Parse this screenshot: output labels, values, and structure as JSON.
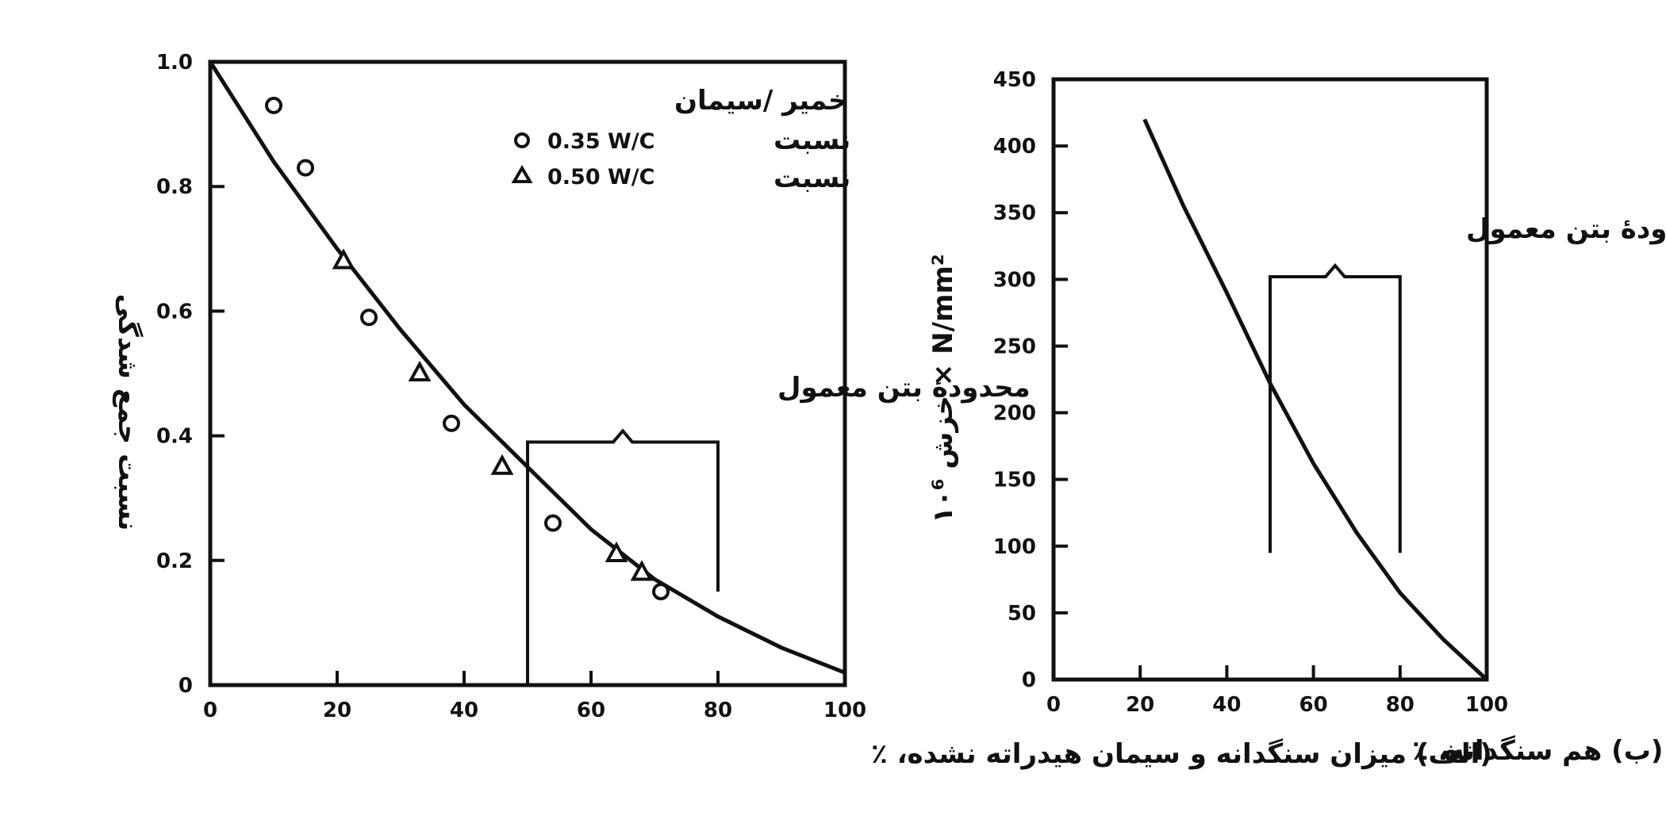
{
  "chart_data": [
    {
      "type": "scatter",
      "panel_label": "(الف)",
      "xlabel": "(الف) میزان سنگدانه و سیمان هیدراته نشده، ٪",
      "ylabel": "نسبت جمع شدگی",
      "xlim": [
        0,
        100
      ],
      "ylim": [
        0,
        1.0
      ],
      "x_ticks": [
        "0",
        "20",
        "40",
        "60",
        "80",
        "100"
      ],
      "y_ticks": [
        "0",
        "0.2",
        "0.4",
        "0.6",
        "0.8",
        "1.0"
      ],
      "legend_title": "خمیر /سیمان",
      "series": [
        {
          "name": "0.35 W/C",
          "legend_prefix": "نسبت",
          "marker": "circle",
          "points": [
            [
              10,
              0.93
            ],
            [
              15,
              0.83
            ],
            [
              25,
              0.59
            ],
            [
              38,
              0.42
            ],
            [
              54,
              0.26
            ],
            [
              71,
              0.15
            ]
          ]
        },
        {
          "name": "0.50 W/C",
          "legend_prefix": "نسبت",
          "marker": "triangle",
          "points": [
            [
              21,
              0.68
            ],
            [
              33,
              0.5
            ],
            [
              46,
              0.35
            ],
            [
              64,
              0.21
            ],
            [
              68,
              0.18
            ]
          ]
        }
      ],
      "curve": {
        "style": "solid",
        "points": [
          [
            0,
            1.0
          ],
          [
            10,
            0.84
          ],
          [
            20,
            0.7
          ],
          [
            30,
            0.57
          ],
          [
            40,
            0.45
          ],
          [
            50,
            0.35
          ],
          [
            60,
            0.25
          ],
          [
            70,
            0.17
          ],
          [
            80,
            0.11
          ],
          [
            90,
            0.06
          ],
          [
            100,
            0.02
          ]
        ]
      },
      "annotation": {
        "text": "محدودهٔ بتن معمول",
        "range_x": [
          50,
          80
        ],
        "bracket_y": 0.39,
        "bar_bottom_y": 0.15
      },
      "grid": false
    },
    {
      "type": "line",
      "panel_label": "(ب)",
      "xlabel": "(ب) هم سنگدانه، ٪",
      "ylabel": "خزش ۱۰⁶ × N/mm²",
      "xlim": [
        0,
        100
      ],
      "ylim": [
        0,
        450
      ],
      "x_ticks": [
        "0",
        "20",
        "40",
        "60",
        "80",
        "100"
      ],
      "y_ticks": [
        "0",
        "50",
        "100",
        "150",
        "200",
        "250",
        "300",
        "350",
        "400",
        "450"
      ],
      "series": [
        {
          "points": [
            [
              21,
              420
            ],
            [
              30,
              355
            ],
            [
              40,
              290
            ],
            [
              50,
              222
            ],
            [
              60,
              162
            ],
            [
              70,
              110
            ],
            [
              80,
              65
            ],
            [
              90,
              30
            ],
            [
              100,
              0
            ]
          ]
        }
      ],
      "annotation": {
        "text": "محدودهٔ بتن معمول",
        "range_x": [
          50,
          80
        ],
        "bracket_y": 302,
        "bar_bottom_y": 95
      },
      "grid": false
    }
  ]
}
